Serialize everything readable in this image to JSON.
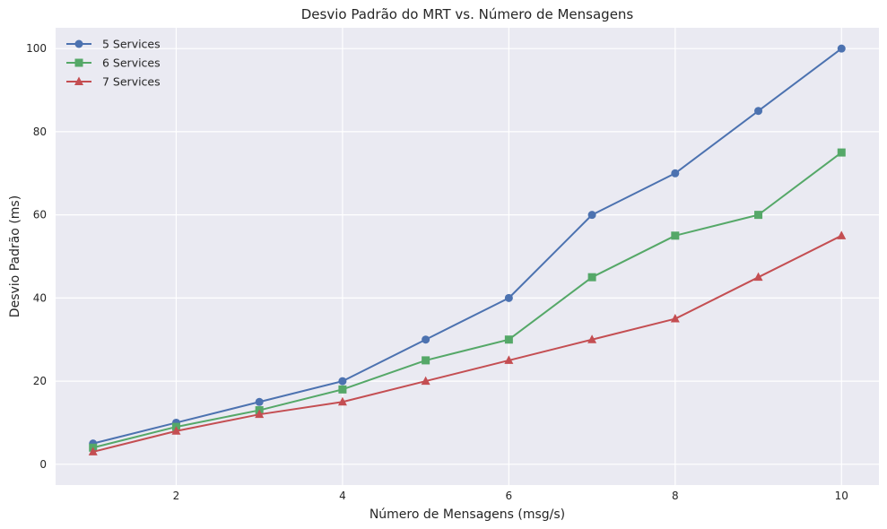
{
  "chart_data": {
    "type": "line",
    "title": "Desvio Padrão do MRT vs. Número de Mensagens",
    "xlabel": "Número de Mensagens (msg/s)",
    "ylabel": "Desvio Padrão (ms)",
    "x": [
      1,
      2,
      3,
      4,
      5,
      6,
      7,
      8,
      9,
      10
    ],
    "xlim": [
      0.55,
      10.45
    ],
    "ylim": [
      -5,
      105
    ],
    "xticks": [
      2,
      4,
      6,
      8,
      10
    ],
    "yticks": [
      0,
      20,
      40,
      60,
      80,
      100
    ],
    "grid": true,
    "legend_position": "top-left",
    "background": "#eaeaf2",
    "series": [
      {
        "name": "5 Services",
        "marker": "circle",
        "color": "#4c72b0",
        "values": [
          5,
          10,
          15,
          20,
          30,
          40,
          60,
          70,
          85,
          100
        ]
      },
      {
        "name": "6 Services",
        "marker": "square",
        "color": "#55a868",
        "values": [
          4,
          9,
          13,
          18,
          25,
          30,
          45,
          55,
          60,
          75
        ]
      },
      {
        "name": "7 Services",
        "marker": "triangle",
        "color": "#c44e52",
        "values": [
          3,
          8,
          12,
          15,
          20,
          25,
          30,
          35,
          45,
          55
        ]
      }
    ]
  }
}
